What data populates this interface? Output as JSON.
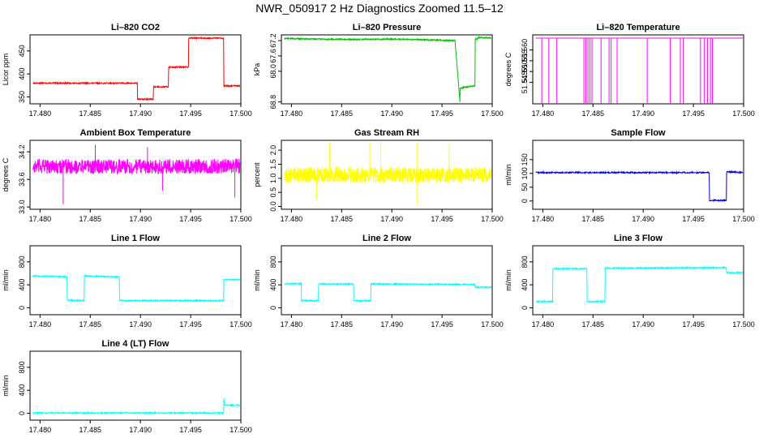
{
  "page": {
    "title": "NWR_050917  2 Hz Diagnostics Zoomed 11.5–12"
  },
  "chart_data": [
    {
      "id": "li820-co2",
      "type": "line",
      "title": "Li–820 CO2",
      "xlabel": "",
      "ylabel": "Licor ppm",
      "xlim": [
        17.479,
        17.5
      ],
      "ylim": [
        335,
        485
      ],
      "xticks": [
        "17.480",
        "17.485",
        "17.490",
        "17.495",
        "17.500"
      ],
      "yticks": [
        "350",
        "400",
        "450"
      ],
      "color": "#ff0000",
      "series": [
        {
          "x": [
            17.479,
            17.4897,
            17.4897,
            17.4913,
            17.4913,
            17.4928,
            17.4928,
            17.4948,
            17.4948,
            17.4983,
            17.4983,
            17.5
          ],
          "values": [
            380,
            380,
            345,
            345,
            372,
            372,
            415,
            415,
            478,
            478,
            374,
            374
          ]
        }
      ]
    },
    {
      "id": "li820-pressure",
      "type": "line",
      "title": "Li–820 Pressure",
      "xlabel": "",
      "ylabel": "kPa",
      "xlim": [
        17.479,
        17.5
      ],
      "ylim": [
        68.85,
        67.05
      ],
      "xticks": [
        "17.480",
        "17.485",
        "17.490",
        "17.495",
        "17.500"
      ],
      "yticks": [
        "67.2",
        "67.6",
        "68.0",
        "68.8"
      ],
      "color": "#00c000",
      "series": [
        {
          "x": [
            17.479,
            17.482,
            17.486,
            17.49,
            17.4935,
            17.4963,
            17.4966,
            17.4968,
            17.4968,
            17.4972,
            17.4983,
            17.4983,
            17.4985,
            17.4985,
            17.5
          ],
          "values": [
            67.14,
            67.16,
            67.17,
            67.16,
            67.18,
            67.2,
            68.2,
            68.86,
            68.45,
            68.42,
            68.38,
            67.15,
            67.17,
            67.12,
            67.13
          ]
        }
      ]
    },
    {
      "id": "li820-temperature",
      "type": "line",
      "title": "Li–820 Temperature",
      "xlabel": "",
      "ylabel": "degrees C",
      "xlim": [
        17.479,
        17.5
      ],
      "ylim": [
        51.535,
        51.567
      ],
      "xticks": [
        "17.480",
        "17.485",
        "17.490",
        "17.495",
        "17.500"
      ],
      "yticks": [
        "51.545",
        "51.550",
        "51.555",
        "51.560"
      ],
      "color": "#ff00ff",
      "series": [
        {
          "baseline": 51.5655,
          "low": 51.535,
          "dips": [
            17.4799,
            17.4806,
            17.4814,
            17.4841,
            17.4843,
            17.4845,
            17.4847,
            17.4849,
            17.4858,
            17.4866,
            17.4868,
            17.4874,
            17.4904,
            17.4927,
            17.4937,
            17.494,
            17.4957,
            17.4961,
            17.4964,
            17.4967,
            17.4969
          ]
        }
      ]
    },
    {
      "id": "ambient-box-temperature",
      "type": "line",
      "title": "Ambient Box Temperature",
      "xlabel": "",
      "ylabel": "degrees C",
      "xlim": [
        17.479,
        17.5
      ],
      "ylim": [
        32.95,
        34.45
      ],
      "xticks": [
        "17.480",
        "17.485",
        "17.490",
        "17.495",
        "17.500"
      ],
      "yticks": [
        "33.0",
        "33.6",
        "34.2"
      ],
      "color": "#ff00ff",
      "series": [
        {
          "mean": 33.88,
          "amp": 0.16,
          "spikes": [
            [
              17.4823,
              33.05
            ],
            [
              17.4855,
              34.35
            ],
            [
              17.4907,
              34.3
            ],
            [
              17.4922,
              33.35
            ],
            [
              17.4994,
              33.2
            ]
          ]
        }
      ]
    },
    {
      "id": "gas-stream-rh",
      "type": "line",
      "title": "Gas Stream RH",
      "xlabel": "",
      "ylabel": "percent",
      "xlim": [
        17.479,
        17.5
      ],
      "ylim": [
        -0.1,
        2.35
      ],
      "xticks": [
        "17.480",
        "17.485",
        "17.490",
        "17.495",
        "17.500"
      ],
      "yticks": [
        "0.0",
        "0.5",
        "1.0",
        "1.5",
        "2.0"
      ],
      "color": "#ffff00",
      "series": [
        {
          "mean": 1.12,
          "amp": 0.28,
          "spikes": [
            [
              17.4838,
              2.25
            ],
            [
              17.4878,
              2.3
            ],
            [
              17.4889,
              2.3
            ],
            [
              17.4925,
              2.28
            ],
            [
              17.4957,
              2.2
            ],
            [
              17.4925,
              0.1
            ],
            [
              17.4825,
              0.25
            ]
          ]
        }
      ]
    },
    {
      "id": "sample-flow",
      "type": "line",
      "title": "Sample Flow",
      "xlabel": "",
      "ylabel": "ml/min",
      "xlim": [
        17.479,
        17.5
      ],
      "ylim": [
        -30,
        220
      ],
      "xticks": [
        "17.480",
        "17.485",
        "17.490",
        "17.495",
        "17.500"
      ],
      "yticks": [
        "0",
        "50",
        "100",
        "150"
      ],
      "color": "#0000cc",
      "series": [
        {
          "x": [
            17.479,
            17.4966,
            17.4966,
            17.4983,
            17.4983,
            17.5
          ],
          "values": [
            103,
            103,
            2,
            2,
            106,
            103
          ]
        }
      ]
    },
    {
      "id": "line-1-flow",
      "type": "line",
      "title": "Line 1 Flow",
      "xlabel": "",
      "ylabel": "ml/min",
      "xlim": [
        17.479,
        17.5
      ],
      "ylim": [
        -120,
        1080
      ],
      "xticks": [
        "17.480",
        "17.485",
        "17.490",
        "17.495",
        "17.500"
      ],
      "yticks": [
        "0",
        "400",
        "800"
      ],
      "color": "#00ffff",
      "series": [
        {
          "x": [
            17.479,
            17.4827,
            17.4827,
            17.4844,
            17.4844,
            17.4879,
            17.4879,
            17.4983,
            17.4983,
            17.5
          ],
          "values": [
            555,
            540,
            130,
            130,
            555,
            535,
            125,
            125,
            490,
            490
          ]
        }
      ]
    },
    {
      "id": "line-2-flow",
      "type": "line",
      "title": "Line 2 Flow",
      "xlabel": "",
      "ylabel": "ml/min",
      "xlim": [
        17.479,
        17.5
      ],
      "ylim": [
        -120,
        1080
      ],
      "xticks": [
        "17.480",
        "17.485",
        "17.490",
        "17.495",
        "17.500"
      ],
      "yticks": [
        "0",
        "400",
        "800"
      ],
      "color": "#00ffff",
      "series": [
        {
          "x": [
            17.479,
            17.481,
            17.481,
            17.4827,
            17.4827,
            17.4862,
            17.4862,
            17.4879,
            17.4879,
            17.4983,
            17.4983,
            17.5
          ],
          "values": [
            420,
            420,
            125,
            125,
            415,
            415,
            125,
            125,
            415,
            405,
            360,
            360
          ]
        }
      ]
    },
    {
      "id": "line-3-flow",
      "type": "line",
      "title": "Line 3 Flow",
      "xlabel": "",
      "ylabel": "ml/min",
      "xlim": [
        17.479,
        17.5
      ],
      "ylim": [
        -120,
        1080
      ],
      "xticks": [
        "17.480",
        "17.485",
        "17.490",
        "17.495",
        "17.500"
      ],
      "yticks": [
        "0",
        "400",
        "800"
      ],
      "color": "#00ffff",
      "series": [
        {
          "x": [
            17.479,
            17.481,
            17.481,
            17.4844,
            17.4844,
            17.4862,
            17.4862,
            17.4983,
            17.4983,
            17.5
          ],
          "values": [
            110,
            110,
            680,
            680,
            110,
            110,
            690,
            700,
            610,
            610
          ]
        }
      ]
    },
    {
      "id": "line-4-lt-flow",
      "type": "line",
      "title": "Line 4 (LT) Flow",
      "xlabel": "",
      "ylabel": "ml/min",
      "xlim": [
        17.479,
        17.5
      ],
      "ylim": [
        -120,
        1080
      ],
      "xticks": [
        "17.480",
        "17.485",
        "17.490",
        "17.495",
        "17.500"
      ],
      "yticks": [
        "0",
        "400",
        "800"
      ],
      "color": "#00ffff",
      "series": [
        {
          "x": [
            17.479,
            17.4983,
            17.4983,
            17.4984,
            17.4986,
            17.5
          ],
          "values": [
            5,
            5,
            260,
            140,
            140,
            140
          ]
        }
      ]
    }
  ]
}
